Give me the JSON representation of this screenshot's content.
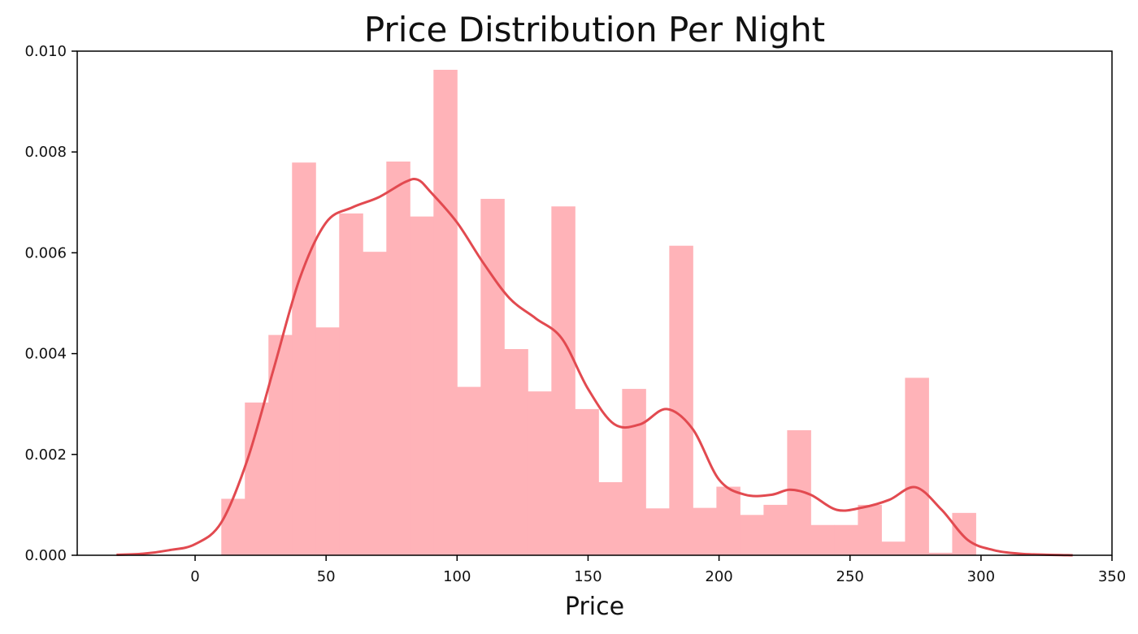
{
  "chart_data": {
    "type": "bar",
    "title": "Price Distribution Per Night",
    "xlabel": "Price",
    "ylabel": "",
    "xlim": [
      -45,
      350
    ],
    "ylim": [
      0,
      0.01
    ],
    "x_ticks": [
      0,
      50,
      100,
      150,
      200,
      250,
      300,
      350
    ],
    "x_tick_labels": [
      "0",
      "50",
      "100",
      "150",
      "200",
      "250",
      "300",
      "350"
    ],
    "y_ticks": [
      0,
      0.002,
      0.004,
      0.006,
      0.008,
      0.01
    ],
    "y_tick_labels": [
      "0.000",
      "0.002",
      "0.004",
      "0.006",
      "0.008",
      "0.010"
    ],
    "grid": false,
    "bar_color": "#ffb3b8",
    "kde_color": "#e24a50",
    "histogram": {
      "bin_edges": [
        10,
        19,
        28,
        37,
        46,
        55,
        64,
        73,
        82,
        91,
        100,
        109,
        118,
        127,
        136,
        145,
        154,
        163,
        172,
        181,
        190,
        199,
        208,
        217,
        226,
        235,
        244,
        253,
        262,
        271,
        280,
        289,
        298
      ],
      "values": [
        0.00112,
        0.00303,
        0.00437,
        0.00779,
        0.00452,
        0.00678,
        0.00602,
        0.00781,
        0.00672,
        0.00963,
        0.00334,
        0.00707,
        0.00409,
        0.00325,
        0.00692,
        0.0029,
        0.00145,
        0.0033,
        0.00093,
        0.00614,
        0.00094,
        0.00136,
        0.0008,
        0.001,
        0.00248,
        0.0006,
        0.0006,
        0.001,
        0.00027,
        0.00352,
        5e-05,
        0.00084
      ]
    },
    "kde": {
      "x": [
        -30,
        -20,
        -10,
        0,
        10,
        20,
        30,
        40,
        50,
        60,
        70,
        80,
        85,
        90,
        100,
        110,
        120,
        130,
        140,
        150,
        160,
        170,
        180,
        190,
        200,
        210,
        220,
        227,
        235,
        245,
        255,
        265,
        275,
        285,
        295,
        305,
        315,
        325,
        335
      ],
      "y": [
        1e-05,
        3e-05,
        0.0001,
        0.00022,
        0.00065,
        0.0019,
        0.0037,
        0.0055,
        0.0066,
        0.0069,
        0.0071,
        0.0074,
        0.00745,
        0.0072,
        0.0066,
        0.0058,
        0.0051,
        0.0047,
        0.0043,
        0.0033,
        0.0026,
        0.0026,
        0.0029,
        0.0025,
        0.0015,
        0.0012,
        0.0012,
        0.0013,
        0.0012,
        0.0009,
        0.00095,
        0.0011,
        0.00135,
        0.0009,
        0.0003,
        0.0001,
        3e-05,
        1e-05,
        0
      ]
    }
  }
}
